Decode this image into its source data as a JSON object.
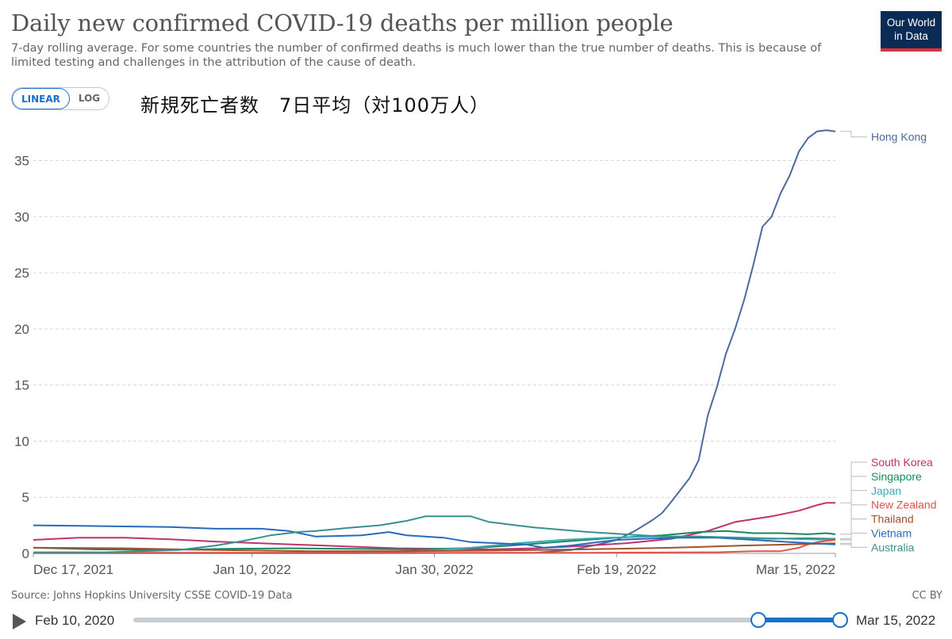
{
  "header": {
    "title": "Daily new confirmed COVID-19 deaths per million people",
    "subtitle": "7-day rolling average. For some countries the number of confirmed deaths is much lower than the true number of deaths. This is because of limited testing and challenges in the attribution of the cause of death.",
    "logo_line1": "Our World",
    "logo_line2": "in Data"
  },
  "controls": {
    "linear_label": "LINEAR",
    "log_label": "LOG"
  },
  "annotation": "新規死亡者数　7日平均（対100万人）",
  "footer": {
    "source": "Source: Johns Hopkins University CSSE COVID-19 Data",
    "license": "CC BY"
  },
  "timeline": {
    "start_label": "Feb 10, 2020",
    "end_label": "Mar 15, 2022"
  },
  "chart_data": {
    "type": "line",
    "title": "Daily new confirmed COVID-19 deaths per million people",
    "xlabel": "",
    "ylabel": "",
    "ylim": [
      0,
      38
    ],
    "yticks": [
      0,
      5,
      10,
      15,
      20,
      25,
      30,
      35
    ],
    "x_start": "2021-12-17",
    "x_end": "2022-03-15",
    "xticks": [
      {
        "date": "2021-12-17",
        "label": "Dec 17, 2021"
      },
      {
        "date": "2022-01-10",
        "label": "Jan 10, 2022"
      },
      {
        "date": "2022-01-30",
        "label": "Jan 30, 2022"
      },
      {
        "date": "2022-02-19",
        "label": "Feb 19, 2022"
      },
      {
        "date": "2022-03-15",
        "label": "Mar 15, 2022"
      }
    ],
    "grid": "horizontal dashed",
    "legend": "right, line-end labels",
    "series": [
      {
        "name": "Hong Kong",
        "color": "#4c6a9c",
        "points": [
          [
            "2021-12-17",
            0.02
          ],
          [
            "2022-01-20",
            0.02
          ],
          [
            "2022-02-10",
            0.05
          ],
          [
            "2022-02-14",
            0.3
          ],
          [
            "2022-02-17",
            0.8
          ],
          [
            "2022-02-19",
            1.2
          ],
          [
            "2022-02-21",
            2.0
          ],
          [
            "2022-02-23",
            3.0
          ],
          [
            "2022-02-24",
            3.6
          ],
          [
            "2022-02-25",
            4.6
          ],
          [
            "2022-02-27",
            6.7
          ],
          [
            "2022-02-28",
            8.3
          ],
          [
            "2022-03-01",
            12.3
          ],
          [
            "2022-03-02",
            14.8
          ],
          [
            "2022-03-03",
            17.8
          ],
          [
            "2022-03-04",
            20.0
          ],
          [
            "2022-03-05",
            22.6
          ],
          [
            "2022-03-06",
            25.7
          ],
          [
            "2022-03-07",
            29.1
          ],
          [
            "2022-03-08",
            30.0
          ],
          [
            "2022-03-09",
            32.1
          ],
          [
            "2022-03-10",
            33.7
          ],
          [
            "2022-03-11",
            35.8
          ],
          [
            "2022-03-12",
            37.0
          ],
          [
            "2022-03-13",
            37.6
          ],
          [
            "2022-03-14",
            37.7
          ],
          [
            "2022-03-15",
            37.6
          ]
        ]
      },
      {
        "name": "South Korea",
        "color": "#c1306f",
        "points": [
          [
            "2021-12-17",
            1.2
          ],
          [
            "2021-12-22",
            1.4
          ],
          [
            "2021-12-27",
            1.4
          ],
          [
            "2022-01-01",
            1.25
          ],
          [
            "2022-01-06",
            1.05
          ],
          [
            "2022-01-11",
            0.9
          ],
          [
            "2022-01-16",
            0.75
          ],
          [
            "2022-01-21",
            0.6
          ],
          [
            "2022-01-26",
            0.45
          ],
          [
            "2022-01-31",
            0.4
          ],
          [
            "2022-02-05",
            0.35
          ],
          [
            "2022-02-10",
            0.45
          ],
          [
            "2022-02-15",
            0.65
          ],
          [
            "2022-02-20",
            0.9
          ],
          [
            "2022-02-25",
            1.3
          ],
          [
            "2022-03-01",
            2.0
          ],
          [
            "2022-03-04",
            2.8
          ],
          [
            "2022-03-08",
            3.3
          ],
          [
            "2022-03-11",
            3.8
          ],
          [
            "2022-03-13",
            4.3
          ],
          [
            "2022-03-14",
            4.5
          ],
          [
            "2022-03-15",
            4.5
          ]
        ]
      },
      {
        "name": "Singapore",
        "color": "#18895e",
        "points": [
          [
            "2021-12-17",
            0.5
          ],
          [
            "2021-12-24",
            0.35
          ],
          [
            "2021-12-31",
            0.3
          ],
          [
            "2022-01-07",
            0.4
          ],
          [
            "2022-01-14",
            0.45
          ],
          [
            "2022-01-21",
            0.4
          ],
          [
            "2022-01-28",
            0.35
          ],
          [
            "2022-02-04",
            0.5
          ],
          [
            "2022-02-09",
            0.8
          ],
          [
            "2022-02-14",
            1.1
          ],
          [
            "2022-02-19",
            1.4
          ],
          [
            "2022-02-24",
            1.6
          ],
          [
            "2022-02-28",
            1.9
          ],
          [
            "2022-03-03",
            2.0
          ],
          [
            "2022-03-06",
            1.8
          ],
          [
            "2022-03-09",
            1.8
          ],
          [
            "2022-03-12",
            1.7
          ],
          [
            "2022-03-14",
            1.8
          ],
          [
            "2022-03-15",
            1.7
          ]
        ]
      },
      {
        "name": "Japan",
        "color": "#38aaba",
        "points": [
          [
            "2021-12-17",
            0.05
          ],
          [
            "2022-01-10",
            0.05
          ],
          [
            "2022-01-20",
            0.1
          ],
          [
            "2022-01-28",
            0.2
          ],
          [
            "2022-02-03",
            0.5
          ],
          [
            "2022-02-08",
            0.9
          ],
          [
            "2022-02-13",
            1.2
          ],
          [
            "2022-02-18",
            1.4
          ],
          [
            "2022-02-23",
            1.5
          ],
          [
            "2022-02-28",
            1.5
          ],
          [
            "2022-03-05",
            1.4
          ],
          [
            "2022-03-10",
            1.3
          ],
          [
            "2022-03-15",
            1.2
          ]
        ]
      },
      {
        "name": "New Zealand",
        "color": "#e0544b",
        "points": [
          [
            "2021-12-17",
            0.05
          ],
          [
            "2022-02-15",
            0.05
          ],
          [
            "2022-03-02",
            0.1
          ],
          [
            "2022-03-06",
            0.2
          ],
          [
            "2022-03-09",
            0.2
          ],
          [
            "2022-03-11",
            0.5
          ],
          [
            "2022-03-12",
            0.8
          ],
          [
            "2022-03-13",
            1.0
          ],
          [
            "2022-03-15",
            1.2
          ]
        ]
      },
      {
        "name": "Thailand",
        "color": "#a0522d",
        "points": [
          [
            "2021-12-17",
            0.5
          ],
          [
            "2021-12-27",
            0.45
          ],
          [
            "2022-01-06",
            0.3
          ],
          [
            "2022-01-16",
            0.2
          ],
          [
            "2022-01-26",
            0.2
          ],
          [
            "2022-02-05",
            0.25
          ],
          [
            "2022-02-15",
            0.35
          ],
          [
            "2022-02-25",
            0.5
          ],
          [
            "2022-03-05",
            0.7
          ],
          [
            "2022-03-10",
            0.8
          ],
          [
            "2022-03-15",
            0.9
          ]
        ]
      },
      {
        "name": "Vietnam",
        "color": "#286bbb",
        "points": [
          [
            "2021-12-17",
            2.5
          ],
          [
            "2021-12-22",
            2.45
          ],
          [
            "2021-12-27",
            2.4
          ],
          [
            "2022-01-01",
            2.35
          ],
          [
            "2022-01-06",
            2.2
          ],
          [
            "2022-01-11",
            2.2
          ],
          [
            "2022-01-14",
            2.0
          ],
          [
            "2022-01-17",
            1.5
          ],
          [
            "2022-01-22",
            1.6
          ],
          [
            "2022-01-25",
            1.9
          ],
          [
            "2022-01-27",
            1.6
          ],
          [
            "2022-01-31",
            1.4
          ],
          [
            "2022-02-03",
            1.0
          ],
          [
            "2022-02-06",
            0.9
          ],
          [
            "2022-02-09",
            0.8
          ],
          [
            "2022-02-11",
            0.5
          ],
          [
            "2022-02-14",
            0.7
          ],
          [
            "2022-02-17",
            1.0
          ],
          [
            "2022-02-19",
            1.2
          ],
          [
            "2022-02-22",
            1.3
          ],
          [
            "2022-02-26",
            1.4
          ],
          [
            "2022-03-02",
            1.4
          ],
          [
            "2022-03-06",
            1.2
          ],
          [
            "2022-03-10",
            1.0
          ],
          [
            "2022-03-15",
            0.8
          ]
        ]
      },
      {
        "name": "Australia",
        "color": "#3a8f8f",
        "points": [
          [
            "2021-12-17",
            0.1
          ],
          [
            "2021-12-25",
            0.1
          ],
          [
            "2022-01-02",
            0.3
          ],
          [
            "2022-01-06",
            0.7
          ],
          [
            "2022-01-09",
            1.1
          ],
          [
            "2022-01-12",
            1.6
          ],
          [
            "2022-01-15",
            1.9
          ],
          [
            "2022-01-17",
            2.0
          ],
          [
            "2022-01-21",
            2.3
          ],
          [
            "2022-01-24",
            2.5
          ],
          [
            "2022-01-27",
            2.9
          ],
          [
            "2022-01-29",
            3.3
          ],
          [
            "2022-02-01",
            3.3
          ],
          [
            "2022-02-03",
            3.3
          ],
          [
            "2022-02-05",
            2.8
          ],
          [
            "2022-02-07",
            2.6
          ],
          [
            "2022-02-10",
            2.3
          ],
          [
            "2022-02-13",
            2.1
          ],
          [
            "2022-02-16",
            1.9
          ],
          [
            "2022-02-19",
            1.75
          ],
          [
            "2022-02-24",
            1.5
          ],
          [
            "2022-02-28",
            1.5
          ],
          [
            "2022-03-04",
            1.4
          ],
          [
            "2022-03-08",
            1.3
          ],
          [
            "2022-03-12",
            1.35
          ],
          [
            "2022-03-15",
            1.3
          ]
        ]
      }
    ]
  }
}
